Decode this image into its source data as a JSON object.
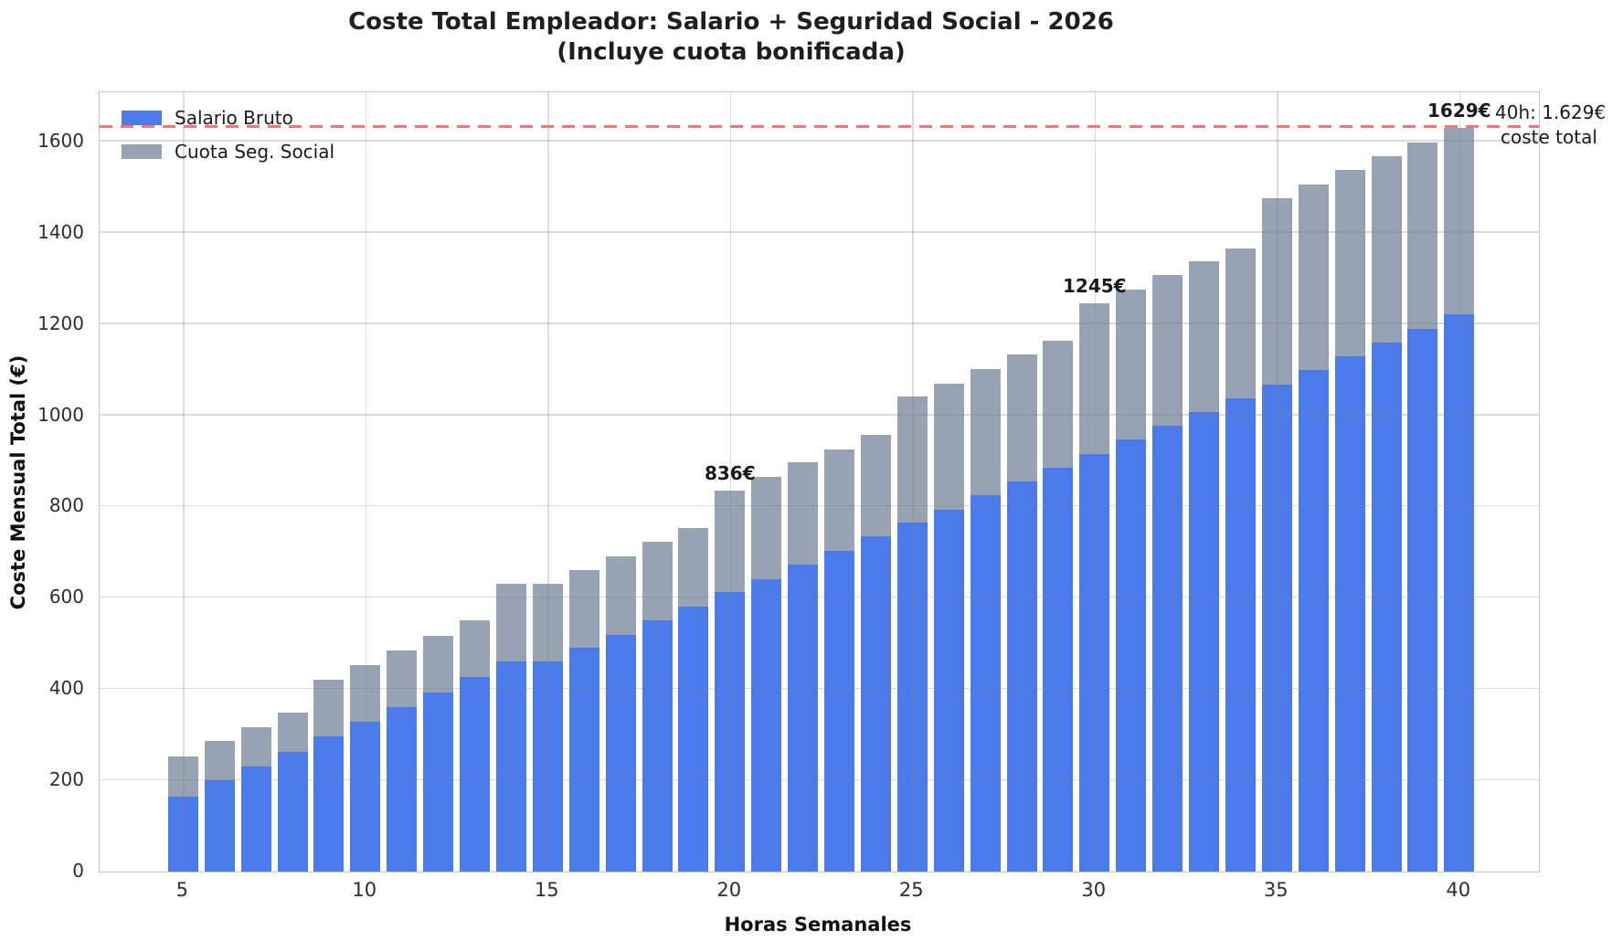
{
  "title": {
    "line1": "Coste Total Empleador: Salario + Seguridad Social - 2026",
    "line2": "(Incluye cuota bonificada)"
  },
  "axes": {
    "x_label": "Horas Semanales",
    "y_label": "Coste Mensual Total (€)",
    "x_ticks": [
      5,
      10,
      15,
      20,
      25,
      30,
      35,
      40
    ],
    "y_ticks": [
      0,
      200,
      400,
      600,
      800,
      1000,
      1200,
      1400,
      1600
    ],
    "y_max": 1708,
    "grid": true
  },
  "legend": {
    "position": "upper-left",
    "items": [
      {
        "label": "Salario Bruto",
        "color": "#4b7bea"
      },
      {
        "label": "Cuota Seg. Social",
        "color": "#97a2b2"
      }
    ]
  },
  "reference_line": {
    "value": 1629,
    "style": "dashed",
    "color": "#fa7373",
    "note_line1": "40h: 1.629€",
    "note_line2": "coste total"
  },
  "bar_annotations": [
    {
      "hours": 20,
      "text": "836€"
    },
    {
      "hours": 30,
      "text": "1245€"
    },
    {
      "hours": 40,
      "text": "1629€"
    }
  ],
  "chart_data": {
    "type": "bar",
    "stacked": true,
    "title": "Coste Total Empleador: Salario + Seguridad Social - 2026 (Incluye cuota bonificada)",
    "xlabel": "Horas Semanales",
    "ylabel": "Coste Mensual Total (€)",
    "x": [
      5,
      6,
      7,
      8,
      9,
      10,
      11,
      12,
      13,
      14,
      15,
      16,
      17,
      18,
      19,
      20,
      21,
      22,
      23,
      24,
      25,
      26,
      27,
      28,
      29,
      30,
      31,
      32,
      33,
      34,
      35,
      36,
      37,
      38,
      39,
      40
    ],
    "series": [
      {
        "name": "Salario Bruto",
        "color": "#4b7bea",
        "values": [
          165,
          200,
          230,
          262,
          297,
          328,
          361,
          393,
          426,
          460,
          460,
          490,
          519,
          551,
          581,
          612,
          641,
          673,
          702,
          734,
          764,
          792,
          824,
          856,
          886,
          916,
          947,
          978,
          1008,
          1037,
          1068,
          1099,
          1130,
          1160,
          1190,
          1222
        ]
      },
      {
        "name": "Cuota Seg. Social",
        "color": "#97a2b2",
        "values": [
          87,
          87,
          87,
          87,
          124,
          124,
          124,
          124,
          124,
          171,
          171,
          171,
          171,
          171,
          171,
          224,
          224,
          224,
          224,
          224,
          277,
          277,
          277,
          277,
          277,
          329,
          329,
          329,
          329,
          329,
          407,
          407,
          407,
          407,
          407,
          407
        ]
      }
    ],
    "totals": [
      252,
      287,
      317,
      349,
      421,
      452,
      485,
      517,
      550,
      631,
      631,
      661,
      690,
      722,
      752,
      836,
      865,
      897,
      926,
      958,
      1041,
      1069,
      1101,
      1133,
      1163,
      1245,
      1276,
      1307,
      1337,
      1366,
      1475,
      1506,
      1537,
      1567,
      1597,
      1629
    ],
    "ylim": [
      0,
      1708
    ],
    "legend_position": "upper left",
    "grid": true
  }
}
